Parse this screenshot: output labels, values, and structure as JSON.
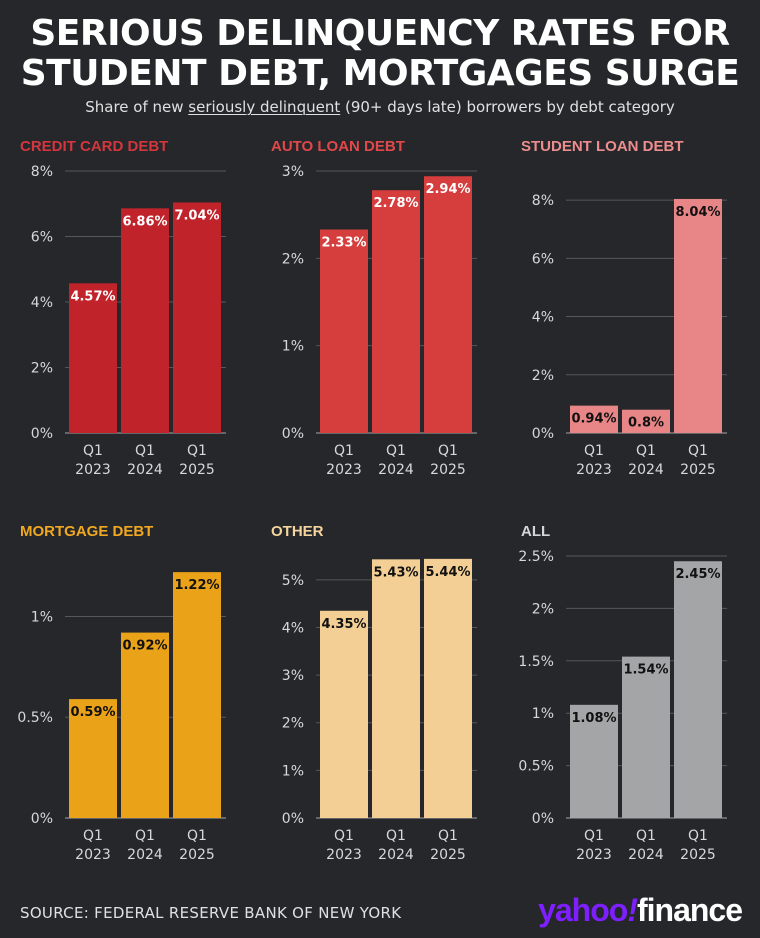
{
  "header": {
    "title_line1": "SERIOUS DELINQUENCY RATES FOR",
    "title_line2": "STUDENT DEBT, MORTGAGES SURGE",
    "subtitle_pre": "Share of new ",
    "subtitle_link": "seriously delinquent",
    "subtitle_post": " (90+ days late) borrowers by debt category"
  },
  "footer": {
    "source": "SOURCE: FEDERAL RESERVE BANK OF NEW YORK",
    "logo_yahoo": "yahoo",
    "logo_bang": "!",
    "logo_finance": "finance"
  },
  "chart_data": [
    {
      "type": "bar",
      "title": "CREDIT CARD DEBT",
      "color": "#c0232a",
      "title_color": "#d3363c",
      "label_color": "#ffffff",
      "categories": [
        "Q1 2023",
        "Q1 2024",
        "Q1 2025"
      ],
      "category_lines": [
        [
          "Q1",
          "2023"
        ],
        [
          "Q1",
          "2024"
        ],
        [
          "Q1",
          "2025"
        ]
      ],
      "values": [
        4.57,
        6.86,
        7.04
      ],
      "value_labels": [
        "4.57%",
        "6.86%",
        "7.04%"
      ],
      "ylim": [
        0,
        8
      ],
      "ticks": [
        0,
        2,
        4,
        6,
        8
      ],
      "tick_labels": [
        "0%",
        "2%",
        "4%",
        "6%",
        "8%"
      ]
    },
    {
      "type": "bar",
      "title": "AUTO LOAN DEBT",
      "color": "#d63d3d",
      "title_color": "#e2484a",
      "label_color": "#ffffff",
      "categories": [
        "Q1 2023",
        "Q1 2024",
        "Q1 2025"
      ],
      "category_lines": [
        [
          "Q1",
          "2023"
        ],
        [
          "Q1",
          "2024"
        ],
        [
          "Q1",
          "2025"
        ]
      ],
      "values": [
        2.33,
        2.78,
        2.94
      ],
      "value_labels": [
        "2.33%",
        "2.78%",
        "2.94%"
      ],
      "ylim": [
        0,
        3
      ],
      "ticks": [
        0,
        1,
        2,
        3
      ],
      "tick_labels": [
        "0%",
        "1%",
        "2%",
        "3%"
      ]
    },
    {
      "type": "bar",
      "title": "STUDENT LOAN DEBT",
      "color": "#e88587",
      "title_color": "#ee8d8e",
      "label_color": "#111111",
      "categories": [
        "Q1 2023",
        "Q1 2024",
        "Q1 2025"
      ],
      "category_lines": [
        [
          "Q1",
          "2023"
        ],
        [
          "Q1",
          "2024"
        ],
        [
          "Q1",
          "2025"
        ]
      ],
      "values": [
        0.94,
        0.8,
        8.04
      ],
      "value_labels": [
        "0.94%",
        "0.8%",
        "8.04%"
      ],
      "ylim": [
        0,
        9
      ],
      "ticks": [
        0,
        2,
        4,
        6,
        8
      ],
      "tick_labels": [
        "0%",
        "2%",
        "4%",
        "6%",
        "8%"
      ]
    },
    {
      "type": "bar",
      "title": "MORTGAGE DEBT",
      "color": "#eaa219",
      "title_color": "#f0a822",
      "label_color": "#111111",
      "categories": [
        "Q1 2023",
        "Q1 2024",
        "Q1 2025"
      ],
      "category_lines": [
        [
          "Q1",
          "2023"
        ],
        [
          "Q1",
          "2024"
        ],
        [
          "Q1",
          "2025"
        ]
      ],
      "values": [
        0.59,
        0.92,
        1.22
      ],
      "value_labels": [
        "0.59%",
        "0.92%",
        "1.22%"
      ],
      "ylim": [
        0,
        1.3
      ],
      "ticks": [
        0,
        0.5,
        1
      ],
      "tick_labels": [
        "0%",
        "0.5%",
        "1%"
      ]
    },
    {
      "type": "bar",
      "title": "OTHER",
      "color": "#f3cf96",
      "title_color": "#f4d59d",
      "label_color": "#111111",
      "categories": [
        "Q1 2023",
        "Q1 2024",
        "Q1 2025"
      ],
      "category_lines": [
        [
          "Q1",
          "2023"
        ],
        [
          "Q1",
          "2024"
        ],
        [
          "Q1",
          "2025"
        ]
      ],
      "values": [
        4.35,
        5.43,
        5.44
      ],
      "value_labels": [
        "4.35%",
        "5.43%",
        "5.44%"
      ],
      "ylim": [
        0,
        5.5
      ],
      "ticks": [
        0,
        1,
        2,
        3,
        4,
        5
      ],
      "tick_labels": [
        "0%",
        "1%",
        "2%",
        "3%",
        "4%",
        "5%"
      ]
    },
    {
      "type": "bar",
      "title": "ALL",
      "color": "#a4a5a7",
      "title_color": "#d5d5d5",
      "label_color": "#111111",
      "categories": [
        "Q1 2023",
        "Q1 2024",
        "Q1 2025"
      ],
      "category_lines": [
        [
          "Q1",
          "2023"
        ],
        [
          "Q1",
          "2024"
        ],
        [
          "Q1",
          "2025"
        ]
      ],
      "values": [
        1.08,
        1.54,
        2.45
      ],
      "value_labels": [
        "1.08%",
        "1.54%",
        "2.45%"
      ],
      "ylim": [
        0,
        2.5
      ],
      "ticks": [
        0,
        0.5,
        1,
        1.5,
        2,
        2.5
      ],
      "tick_labels": [
        "0%",
        "0.5%",
        "1%",
        "1.5%",
        "2%",
        "2.5%"
      ]
    }
  ]
}
